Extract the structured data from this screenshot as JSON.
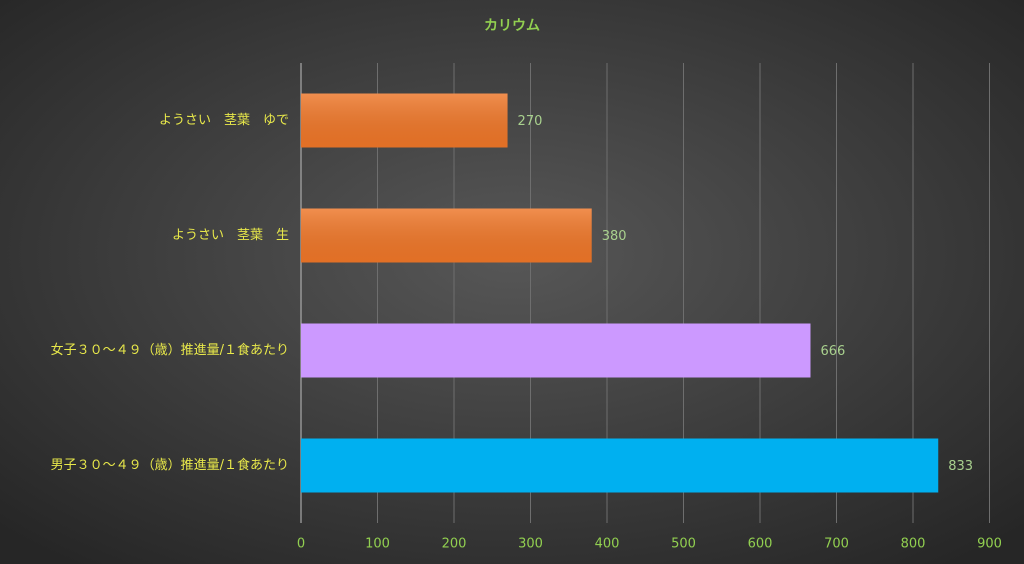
{
  "chart_data": {
    "type": "hbar",
    "title": "カリウム",
    "categories": [
      "ようさい　茎葉　ゆで",
      "ようさい　茎葉　生",
      "女子３０～４９（歳）推進量/１食あたり",
      "男子３０～４９（歳）推進量/１食あたり"
    ],
    "values": [
      270,
      380,
      666,
      833
    ],
    "colors": [
      "#ee7628",
      "#ee7628",
      "#cc99ff",
      "#00b0f0"
    ],
    "xlim": [
      0,
      900
    ],
    "xticks": [
      0,
      100,
      200,
      300,
      400,
      500,
      600,
      700,
      800,
      900
    ],
    "grid": true
  }
}
